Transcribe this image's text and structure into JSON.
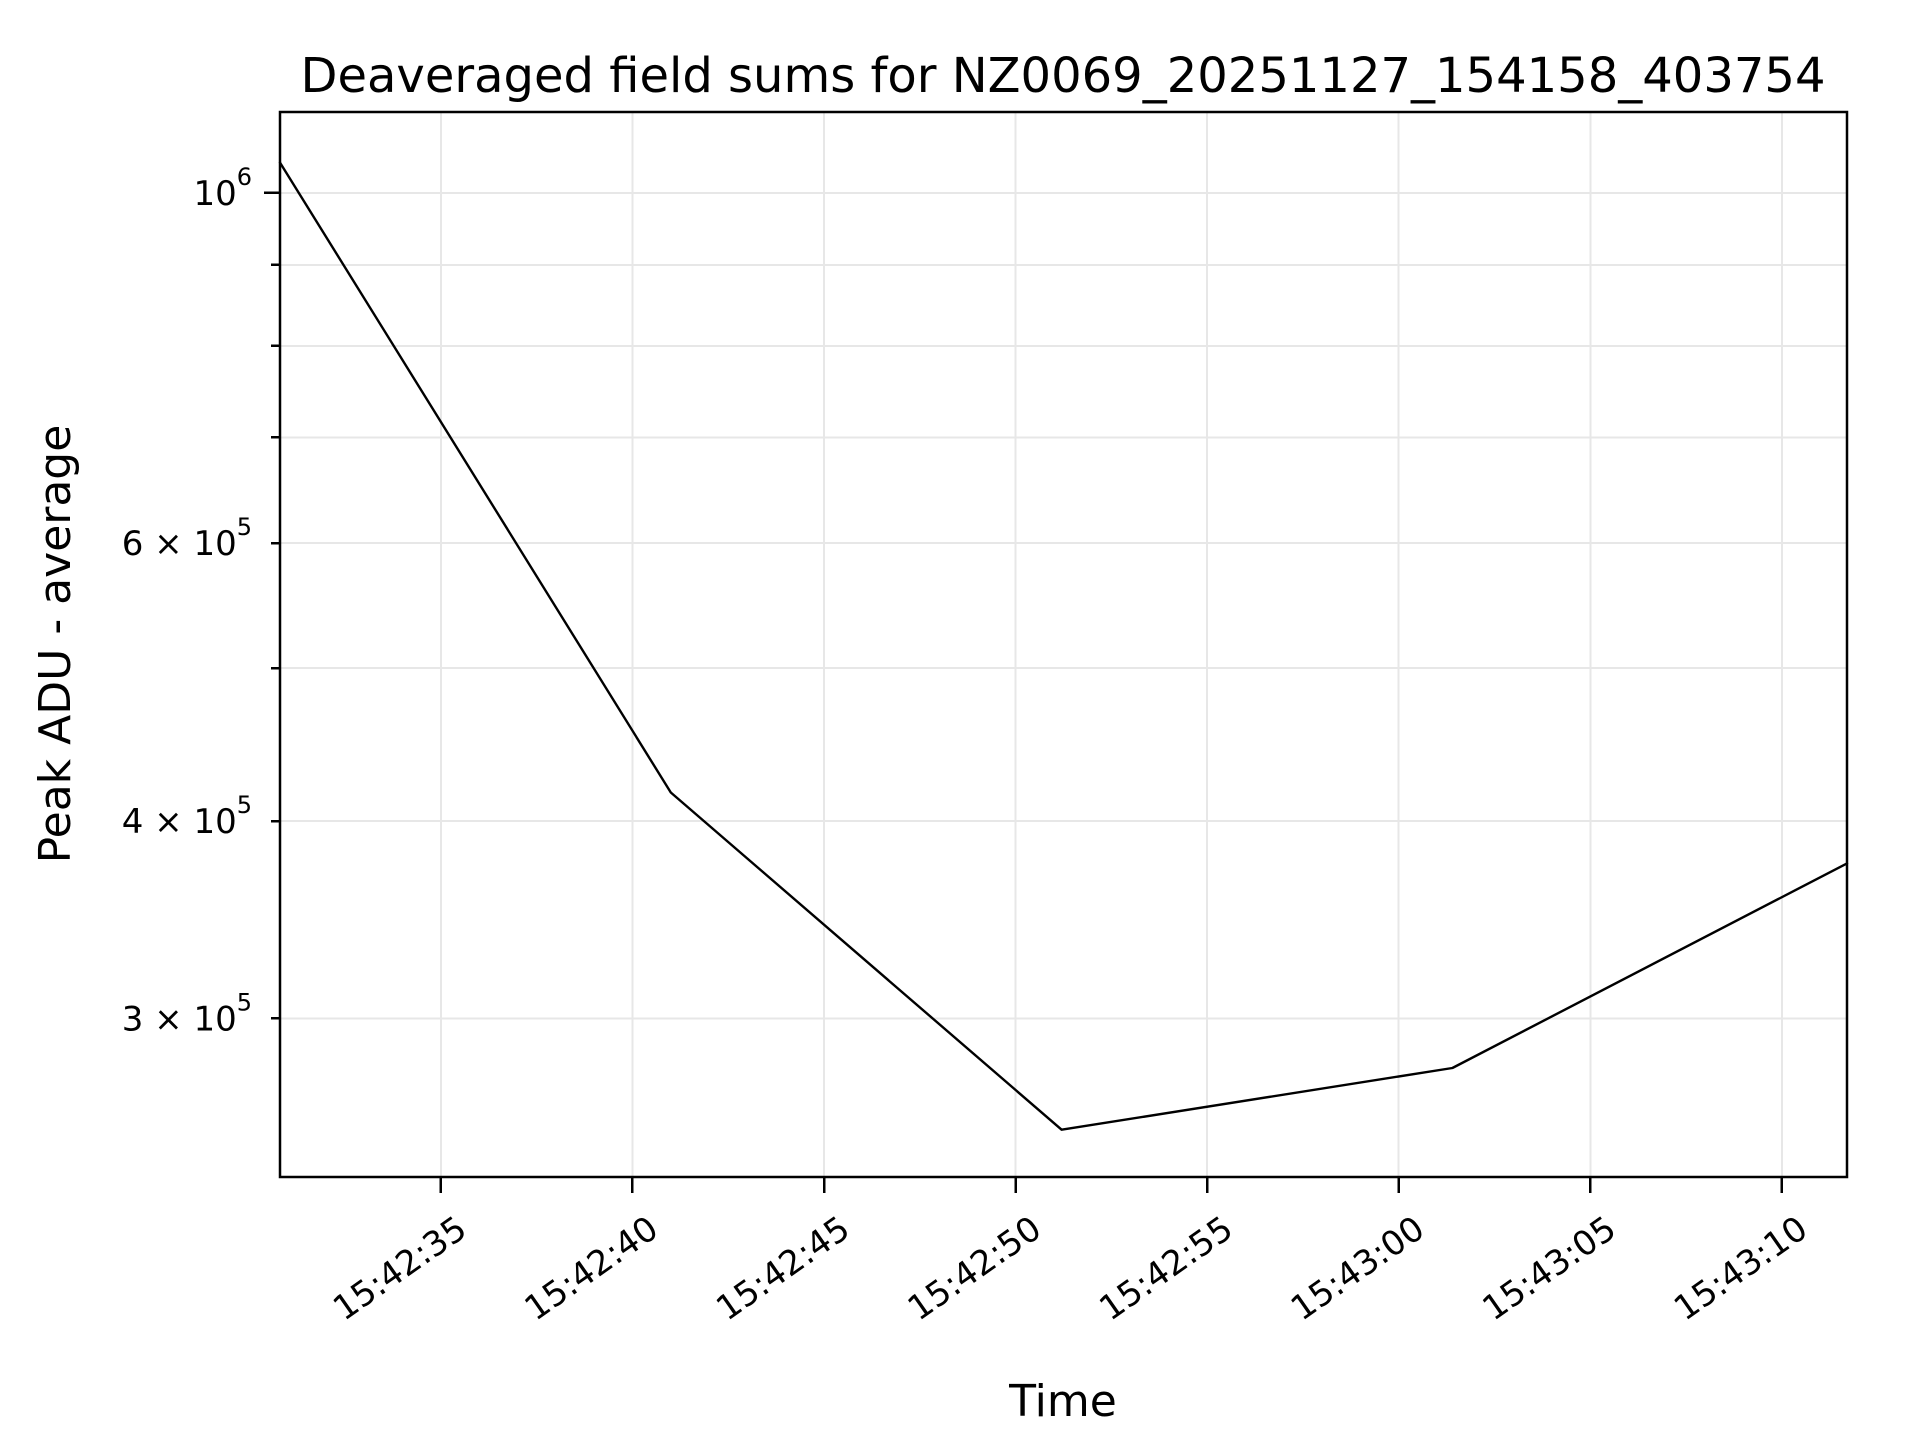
{
  "chart_data": {
    "type": "line",
    "title": "Deaveraged field sums for NZ0069_20251127_154158_403754",
    "xlabel": "Time",
    "ylabel": "Peak ADU - average",
    "yscale": "log",
    "grid": true,
    "legend": "none",
    "colors": {
      "line": "#000000",
      "grid": "#e7e7e7",
      "axis": "#000000",
      "text": "#000000"
    },
    "xlim_seconds": [
      30.8,
      71.7
    ],
    "ylim": [
      238000,
      1125000
    ],
    "x_seconds_reference": "seconds after 15:42:00",
    "x_ticks": [
      {
        "seconds": 35,
        "label": "15:42:35"
      },
      {
        "seconds": 40,
        "label": "15:42:40"
      },
      {
        "seconds": 45,
        "label": "15:42:45"
      },
      {
        "seconds": 50,
        "label": "15:42:50"
      },
      {
        "seconds": 55,
        "label": "15:42:55"
      },
      {
        "seconds": 60,
        "label": "15:43:00"
      },
      {
        "seconds": 65,
        "label": "15:43:05"
      },
      {
        "seconds": 70,
        "label": "15:43:10"
      }
    ],
    "y_ticks": [
      {
        "value": 1000000,
        "base": "10",
        "exp": "6",
        "major": true
      },
      {
        "value": 900000,
        "base": null,
        "exp": null,
        "major": false
      },
      {
        "value": 800000,
        "base": null,
        "exp": null,
        "major": false
      },
      {
        "value": 700000,
        "base": null,
        "exp": null,
        "major": false
      },
      {
        "value": 600000,
        "base": "6 × 10",
        "exp": "5",
        "major": false
      },
      {
        "value": 500000,
        "base": null,
        "exp": null,
        "major": false
      },
      {
        "value": 400000,
        "base": "4 × 10",
        "exp": "5",
        "major": false
      },
      {
        "value": 300000,
        "base": "3 × 10",
        "exp": "5",
        "major": false
      }
    ],
    "series": [
      {
        "name": "deaveraged field sum",
        "x_times": [
          "15:42:31",
          "15:42:41",
          "15:42:51",
          "15:43:01",
          "15:43:12"
        ],
        "x_seconds": [
          30.8,
          41.0,
          51.2,
          61.4,
          71.7
        ],
        "values": [
          1045000,
          417000,
          255000,
          279000,
          376000
        ]
      }
    ]
  }
}
